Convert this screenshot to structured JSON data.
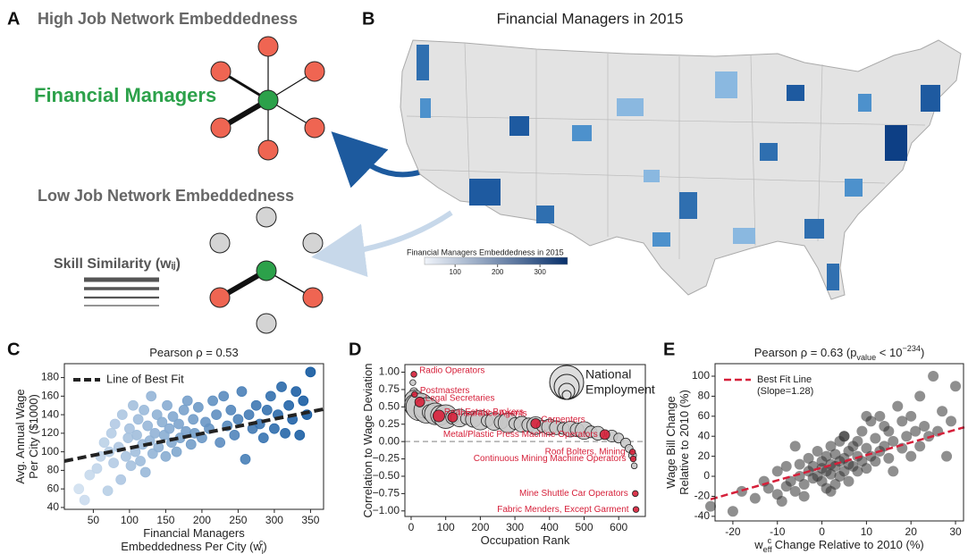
{
  "panel_a": {
    "letter": "A",
    "title_high": "High Job Network Embeddedness",
    "focus": "Financial Managers",
    "title_low": "Low Job Network Embeddedness",
    "skill_label": "Skill Similarity (wᵢⱼ)"
  },
  "panel_b": {
    "letter": "B",
    "title": "Financial Managers in 2015",
    "legend_title": "Financial Managers Embeddedness in 2015",
    "legend_ticks": [
      100,
      200,
      300
    ],
    "colorbar_lim": [
      28,
      365
    ],
    "colorbar_colors": [
      "#f0f4fa",
      "#08306b"
    ]
  },
  "chart_data": [
    {
      "type": "scatter",
      "letter": "C",
      "title": [
        {
          "text": "Pearson ρ = 0.53"
        }
      ],
      "xlabel": [
        [
          {
            "text": "Financial Managers"
          }
        ],
        [
          {
            "text": "Embeddedness Per City (w"
          },
          {
            "sub": "j"
          },
          {
            "sup": "c"
          },
          {
            "text": ")"
          }
        ]
      ],
      "ylabel": [
        [
          {
            "text": "Avg. Annual Wage"
          }
        ],
        [
          {
            "text": "Per City ($1000)"
          }
        ]
      ],
      "xlim": [
        10,
        368
      ],
      "ylim": [
        38,
        195
      ],
      "xticks": [
        50,
        100,
        150,
        200,
        250,
        300,
        350
      ],
      "yticks": [
        40,
        60,
        80,
        100,
        120,
        140,
        160,
        180
      ],
      "legend": "upper left",
      "series": [
        {
          "color_scale": [
            "#dce8f5",
            "#08519c"
          ],
          "x": [
            30,
            38,
            45,
            55,
            60,
            65,
            70,
            72,
            75,
            78,
            80,
            85,
            88,
            90,
            95,
            98,
            100,
            102,
            105,
            108,
            110,
            112,
            115,
            118,
            120,
            122,
            125,
            128,
            130,
            132,
            135,
            138,
            140,
            145,
            148,
            150,
            152,
            155,
            158,
            160,
            165,
            168,
            170,
            175,
            178,
            180,
            185,
            188,
            190,
            195,
            200,
            205,
            210,
            215,
            220,
            225,
            230,
            235,
            240,
            245,
            250,
            255,
            260,
            265,
            270,
            275,
            280,
            285,
            290,
            295,
            300,
            305,
            310,
            315,
            320,
            325,
            330,
            335,
            340,
            345,
            350
          ],
          "values": [
            60,
            48,
            75,
            82,
            95,
            110,
            58,
            100,
            120,
            88,
            130,
            105,
            70,
            140,
            95,
            115,
            125,
            85,
            150,
            100,
            118,
            135,
            90,
            108,
            145,
            78,
            128,
            112,
            160,
            98,
            120,
            140,
            105,
            132,
            118,
            95,
            150,
            125,
            110,
            138,
            100,
            130,
            115,
            145,
            122,
            155,
            108,
            135,
            120,
            148,
            115,
            132,
            125,
            155,
            140,
            110,
            160,
            128,
            145,
            118,
            135,
            165,
            92,
            140,
            125,
            150,
            130,
            115,
            145,
            160,
            125,
            140,
            170,
            120,
            150,
            135,
            165,
            118,
            155,
            140,
            186
          ]
        },
        {
          "name": "Line of Best Fit",
          "type": "line",
          "color": "#222222",
          "dash": true,
          "x": [
            10,
            368
          ],
          "values": [
            90,
            146
          ]
        }
      ]
    },
    {
      "type": "scatter",
      "letter": "D",
      "xlabel": [
        [
          {
            "text": "Occupation Rank"
          }
        ]
      ],
      "ylabel": [
        [
          {
            "text": "Correlation to Wage Deviation"
          }
        ]
      ],
      "xlim": [
        -18,
        677
      ],
      "ylim": [
        -1.08,
        1.11
      ],
      "xticks": [
        0,
        100,
        200,
        300,
        400,
        500,
        600
      ],
      "yticks": [
        {
          "value": 1,
          "label": "1.00"
        },
        {
          "value": 0.75,
          "label": "0.75"
        },
        {
          "value": 0.5,
          "label": "0.50"
        },
        {
          "value": 0.25,
          "label": "0.25"
        },
        {
          "value": 0,
          "label": "0.00"
        },
        {
          "value": -0.25,
          "label": "−0.25"
        },
        {
          "value": -0.5,
          "label": "−0.50"
        },
        {
          "value": -0.75,
          "label": "−0.75"
        },
        {
          "value": -1,
          "label": "−1.00"
        }
      ],
      "hline": 0,
      "size_legend": [
        "National",
        "Employment"
      ],
      "series": [
        {
          "color": "#c8c8c8",
          "x": [
            5,
            8,
            10,
            15,
            25,
            35,
            45,
            55,
            70,
            85,
            100,
            120,
            140,
            160,
            180,
            200,
            220,
            240,
            260,
            280,
            300,
            320,
            340,
            360,
            380,
            400,
            420,
            440,
            460,
            480,
            500,
            520,
            540,
            580,
            600,
            620,
            630,
            640,
            645
          ],
          "values": [
            0.85,
            0.72,
            0.6,
            0.52,
            0.5,
            0.47,
            0.45,
            0.42,
            0.4,
            0.38,
            0.36,
            0.35,
            0.34,
            0.33,
            0.32,
            0.31,
            0.3,
            0.29,
            0.28,
            0.27,
            0.26,
            0.25,
            0.24,
            0.23,
            0.22,
            0.21,
            0.2,
            0.19,
            0.18,
            0.17,
            0.16,
            0.14,
            0.12,
            0.08,
            0.05,
            -0.02,
            -0.1,
            -0.2,
            -0.35
          ],
          "sizes": [
            3,
            4,
            10,
            12,
            14,
            9,
            13,
            8,
            11,
            10,
            12,
            7,
            9,
            6,
            8,
            10,
            6,
            9,
            7,
            10,
            6,
            8,
            7,
            9,
            6,
            8,
            7,
            6,
            8,
            7,
            9,
            6,
            7,
            6,
            5,
            5,
            4,
            4,
            3
          ]
        },
        {
          "color": "#d6203a",
          "x": [
            8,
            10,
            25,
            80,
            120,
            360,
            560,
            640,
            642,
            648,
            650
          ],
          "values": [
            0.97,
            0.68,
            0.57,
            0.37,
            0.35,
            0.26,
            0.1,
            -0.15,
            -0.25,
            -0.75,
            -0.98
          ],
          "sizes": [
            3,
            3,
            5,
            6,
            5,
            5,
            5,
            3,
            3,
            3,
            3
          ],
          "labels": [
            "Radio Operators",
            "Postmasters",
            "Legal Secretaries",
            "Real Estate Brokers",
            "Insurance Agents",
            "Carpenters",
            "Metal/Plastic Press Machine Operators",
            "Roof Bolters, Mining",
            "Continuous Mining Machine Operators",
            "Mine Shuttle Car Operators",
            "Fabric Menders, Except Garment"
          ]
        }
      ]
    },
    {
      "type": "scatter",
      "letter": "E",
      "title": [
        {
          "text": "Pearson ρ = 0.63 (p"
        },
        {
          "sub": "value"
        },
        {
          "text": " < 10"
        },
        {
          "sup": "−234"
        },
        {
          "text": ")"
        }
      ],
      "xlabel": [
        [
          {
            "text": "w"
          },
          {
            "sub": "eff"
          },
          {
            "sup": "c"
          },
          {
            "text": " Change Relative to 2010 (%)"
          }
        ]
      ],
      "ylabel": [
        [
          {
            "text": "Wage Bill Change"
          }
        ],
        [
          {
            "text": "Relative to 2010 (%)"
          }
        ]
      ],
      "xlim": [
        -24,
        31.8
      ],
      "ylim": [
        -44.6,
        112.5
      ],
      "xticks": [
        -20,
        -10,
        0,
        10,
        20,
        30
      ],
      "yticks": [
        -40,
        -20,
        0,
        20,
        40,
        60,
        80,
        100
      ],
      "legend": "upper left",
      "annotation": "(Slope=1.28)",
      "series": [
        {
          "color": "#333333",
          "x": [
            -25,
            -20,
            -18,
            -15,
            -13,
            -12,
            -10,
            -10,
            -8,
            -8,
            -7,
            -6,
            -5,
            -5,
            -4,
            -3,
            -3,
            -2,
            -2,
            -1,
            -1,
            0,
            0,
            0,
            1,
            1,
            1,
            2,
            2,
            2,
            3,
            3,
            3,
            4,
            4,
            4,
            5,
            5,
            5,
            6,
            6,
            6,
            7,
            7,
            8,
            8,
            9,
            9,
            10,
            10,
            11,
            11,
            12,
            12,
            13,
            13,
            14,
            15,
            15,
            16,
            17,
            18,
            18,
            19,
            20,
            20,
            21,
            22,
            22,
            23,
            24,
            25,
            26,
            27,
            28,
            29,
            30,
            -6,
            -4,
            2,
            8,
            14,
            -9,
            5,
            10,
            16
          ],
          "values": [
            -30,
            -35,
            -15,
            -22,
            -5,
            -12,
            -18,
            5,
            -10,
            10,
            -5,
            -15,
            0,
            12,
            -8,
            5,
            18,
            -2,
            10,
            0,
            25,
            -5,
            8,
            15,
            -12,
            5,
            20,
            2,
            12,
            30,
            -8,
            10,
            22,
            0,
            15,
            35,
            5,
            18,
            40,
            -5,
            12,
            25,
            10,
            30,
            5,
            20,
            15,
            45,
            8,
            28,
            20,
            55,
            15,
            38,
            25,
            60,
            30,
            18,
            45,
            35,
            70,
            28,
            55,
            40,
            20,
            60,
            45,
            30,
            80,
            50,
            40,
            100,
            45,
            65,
            20,
            55,
            90,
            30,
            -20,
            -15,
            35,
            50,
            -25,
            40,
            60,
            5
          ]
        },
        {
          "name": "Best Fit Line",
          "type": "line",
          "color": "#d6203a",
          "dash": true,
          "x": [
            -25,
            32
          ],
          "values": [
            -23,
            49
          ]
        }
      ]
    }
  ]
}
